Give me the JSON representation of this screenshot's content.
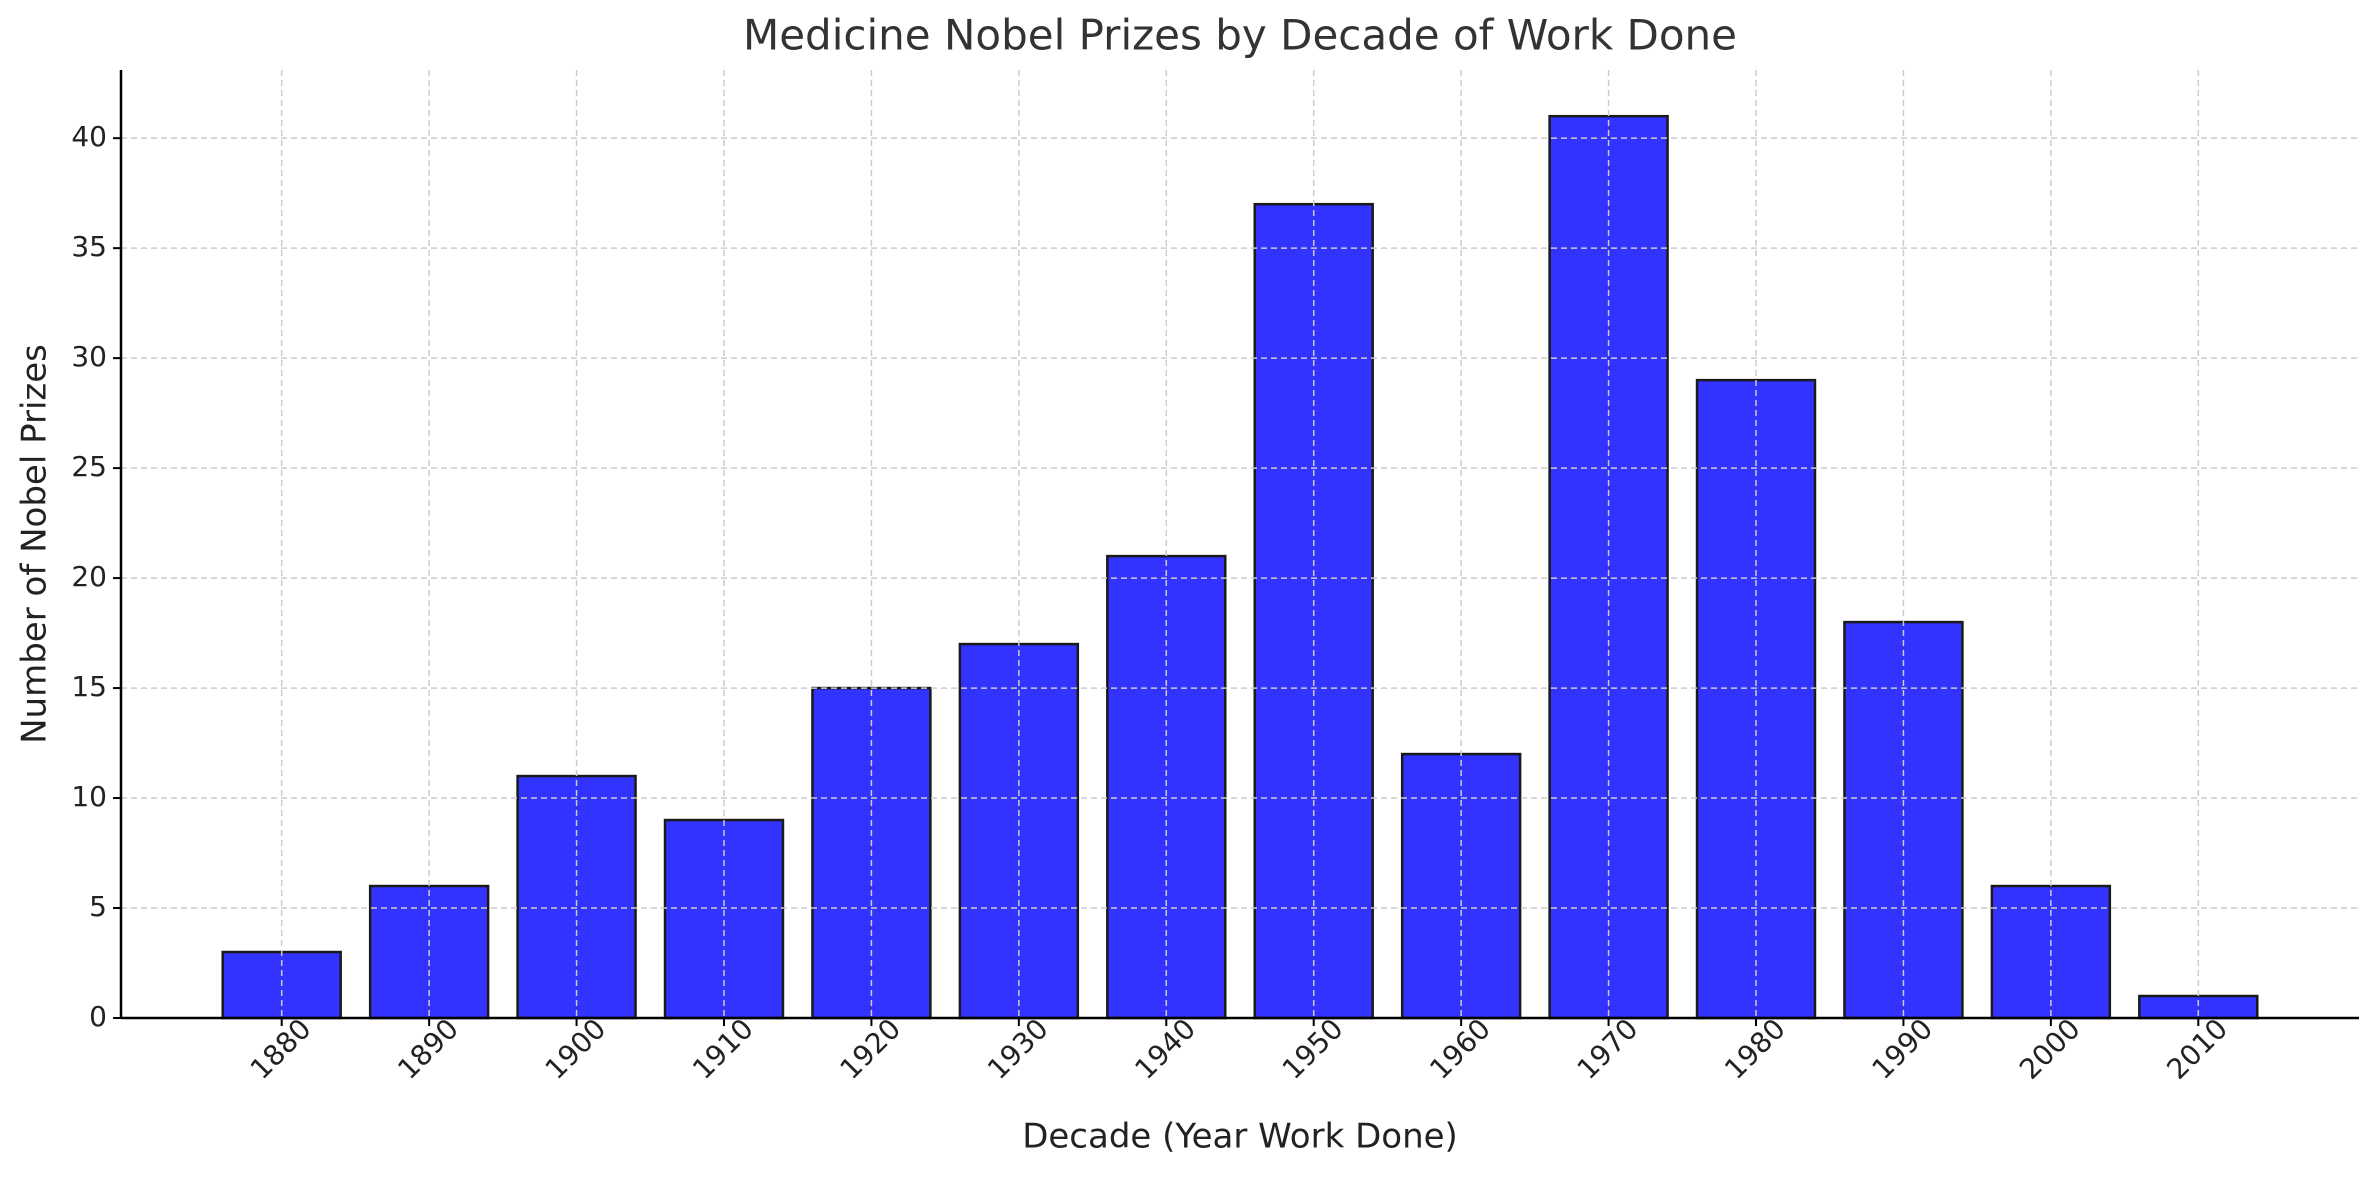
{
  "chart_data": {
    "type": "bar",
    "title": "Medicine Nobel Prizes by Decade of Work Done",
    "x_label": "Decade (Year Work Done)",
    "y_label": "Number of Nobel Prizes",
    "categories": [
      "1880",
      "1890",
      "1900",
      "1910",
      "1920",
      "1930",
      "1940",
      "1950",
      "1960",
      "1970",
      "1980",
      "1990",
      "2000",
      "2010"
    ],
    "values": [
      3,
      6,
      11,
      9,
      15,
      17,
      21,
      37,
      12,
      41,
      29,
      18,
      6,
      1
    ],
    "color": "#3333ff",
    "ylim": [
      0,
      43.1
    ],
    "yticks": [
      0,
      5,
      10,
      15,
      20,
      25,
      30,
      35,
      40
    ],
    "grid": true
  }
}
